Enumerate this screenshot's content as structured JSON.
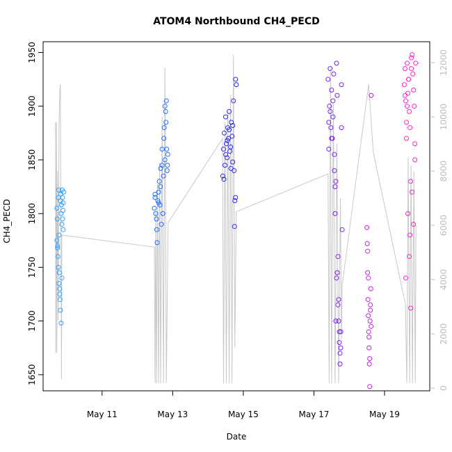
{
  "chart_data": {
    "type": "scatter",
    "title": "ATOM4 Northbound CH4_PECD",
    "xlabel": "Date",
    "ylabel": "CH4_PECD",
    "xlim": [
      9.33,
      20.28
    ],
    "ylim": [
      1635,
      1960
    ],
    "y2lim": [
      -100,
      12770
    ],
    "xticks": [
      {
        "value": 11,
        "label": "May 11"
      },
      {
        "value": 13,
        "label": "May 13"
      },
      {
        "value": 15,
        "label": "May 15"
      },
      {
        "value": 17,
        "label": "May 17"
      },
      {
        "value": 19,
        "label": "May 19"
      }
    ],
    "yticks": [
      1650,
      1700,
      1750,
      1800,
      1850,
      1900,
      1950
    ],
    "y2ticks": [
      0,
      2000,
      4000,
      6000,
      8000,
      10000,
      12000
    ],
    "series": [
      {
        "color": "#2fa0ff",
        "x": [
          9.72,
          9.73,
          9.74,
          9.75,
          9.76,
          9.77,
          9.78,
          9.79,
          9.8,
          9.81,
          9.82,
          9.83,
          9.84,
          9.85,
          9.86,
          9.87,
          9.88,
          9.89,
          9.9,
          9.91,
          9.72,
          9.74,
          9.76,
          9.78,
          9.8,
          9.82,
          9.84,
          9.86,
          9.88,
          9.9
        ],
        "values": [
          1805,
          1795,
          1770,
          1760,
          1815,
          1822,
          1780,
          1745,
          1730,
          1720,
          1812,
          1818,
          1800,
          1808,
          1790,
          1822,
          1815,
          1803,
          1785,
          1820,
          1775,
          1768,
          1750,
          1735,
          1725,
          1710,
          1698,
          1740,
          1795,
          1810
        ]
      },
      {
        "color": "#1f6cff",
        "x": [
          12.48,
          12.5,
          12.52,
          12.54,
          12.56,
          12.58,
          12.6,
          12.62,
          12.64,
          12.66,
          12.68,
          12.7,
          12.72,
          12.74,
          12.76,
          12.78,
          12.8,
          12.82,
          12.84,
          12.86,
          12.5,
          12.55,
          12.6,
          12.65,
          12.7,
          12.75,
          12.78,
          12.81,
          12.83,
          12.85
        ],
        "values": [
          1805,
          1815,
          1800,
          1795,
          1773,
          1812,
          1820,
          1830,
          1808,
          1842,
          1790,
          1860,
          1800,
          1835,
          1880,
          1850,
          1895,
          1905,
          1840,
          1855,
          1818,
          1785,
          1810,
          1825,
          1845,
          1870,
          1900,
          1885,
          1860,
          1845
        ]
      },
      {
        "color": "#2a28f0",
        "x": [
          14.42,
          14.44,
          14.46,
          14.48,
          14.5,
          14.52,
          14.54,
          14.56,
          14.58,
          14.6,
          14.62,
          14.64,
          14.66,
          14.68,
          14.7,
          14.72,
          14.74,
          14.76,
          14.78,
          14.8,
          14.45,
          14.5,
          14.55,
          14.6,
          14.65,
          14.7,
          14.75,
          14.78
        ],
        "values": [
          1835,
          1860,
          1875,
          1845,
          1890,
          1865,
          1852,
          1880,
          1870,
          1895,
          1858,
          1862,
          1885,
          1872,
          1848,
          1905,
          1840,
          1812,
          1925,
          1920,
          1832,
          1855,
          1868,
          1878,
          1842,
          1882,
          1788,
          1815
        ]
      },
      {
        "color": "#7a1ff0",
        "x": [
          17.4,
          17.42,
          17.44,
          17.46,
          17.48,
          17.5,
          17.52,
          17.54,
          17.56,
          17.58,
          17.6,
          17.62,
          17.64,
          17.66,
          17.68,
          17.7,
          17.72,
          17.74,
          17.76,
          17.78,
          17.42,
          17.46,
          17.5,
          17.54,
          17.58,
          17.62,
          17.66,
          17.7,
          17.74,
          17.78,
          17.6,
          17.64,
          17.68,
          17.72,
          17.76,
          17.8
        ],
        "values": [
          1925,
          1860,
          1900,
          1935,
          1880,
          1915,
          1870,
          1890,
          1930,
          1840,
          1825,
          1700,
          1940,
          1910,
          1760,
          1720,
          1680,
          1670,
          1690,
          1920,
          1885,
          1895,
          1870,
          1905,
          1855,
          1830,
          1745,
          1700,
          1660,
          1880,
          1800,
          1740,
          1715,
          1690,
          1675,
          1785
        ]
      },
      {
        "color": "#c41fe0",
        "x": [
          18.5,
          18.51,
          18.52,
          18.53,
          18.54,
          18.55,
          18.56,
          18.57,
          18.58,
          18.59,
          18.6,
          18.61,
          18.62,
          18.52,
          18.54,
          18.56,
          18.58,
          18.6,
          18.62
        ],
        "values": [
          1787,
          1772,
          1745,
          1720,
          1705,
          1690,
          1675,
          1660,
          1639,
          1700,
          1715,
          1730,
          1910,
          1765,
          1740,
          1685,
          1665,
          1710,
          1695
        ]
      },
      {
        "color": "#ff20c8",
        "x": [
          19.56,
          19.58,
          19.6,
          19.62,
          19.64,
          19.66,
          19.68,
          19.7,
          19.72,
          19.74,
          19.76,
          19.78,
          19.8,
          19.82,
          19.84,
          19.86,
          19.88,
          19.58,
          19.62,
          19.66,
          19.7,
          19.74,
          19.78,
          19.82,
          19.86,
          19.6,
          19.64,
          19.68,
          19.72,
          19.76
        ],
        "values": [
          1920,
          1935,
          1905,
          1885,
          1940,
          1912,
          1925,
          1895,
          1780,
          1830,
          1945,
          1948,
          1930,
          1915,
          1900,
          1865,
          1940,
          1910,
          1870,
          1800,
          1760,
          1712,
          1820,
          1790,
          1850,
          1740,
          1900,
          1925,
          1880,
          1935
        ]
      },
      {
        "type": "line",
        "axis": "y2",
        "color": "#c8c8c8",
        "x": [
          9.68,
          9.69,
          9.71,
          9.72,
          9.74,
          9.76,
          9.78,
          9.8,
          9.82,
          9.85,
          9.86,
          12.48,
          12.5,
          12.52,
          12.54,
          12.57,
          12.6,
          12.63,
          12.66,
          12.7,
          12.74,
          12.78,
          12.82,
          12.87,
          14.41,
          14.44,
          14.48,
          14.52,
          14.56,
          14.6,
          14.64,
          14.68,
          14.72,
          14.76,
          14.8,
          17.4,
          17.43,
          17.47,
          17.5,
          17.55,
          17.6,
          17.65,
          17.7,
          17.75,
          17.78,
          17.8,
          18.55,
          18.68,
          19.59,
          19.63,
          19.67,
          19.71,
          19.75,
          19.79,
          19.83,
          19.87,
          19.89
        ],
        "values": [
          9800,
          1300,
          9800,
          1300,
          8000,
          2500,
          9500,
          10900,
          11200,
          330,
          5640,
          5200,
          180,
          6500,
          180,
          7500,
          180,
          8300,
          180,
          10000,
          180,
          11800,
          180,
          6100,
          9200,
          180,
          9800,
          180,
          10200,
          180,
          10800,
          180,
          12300,
          1500,
          6500,
          7900,
          180,
          11800,
          180,
          10500,
          180,
          9000,
          180,
          7000,
          1800,
          3800,
          11200,
          8700,
          3100,
          180,
          8500,
          180,
          8200,
          180,
          8000,
          180,
          6000
        ]
      }
    ]
  }
}
